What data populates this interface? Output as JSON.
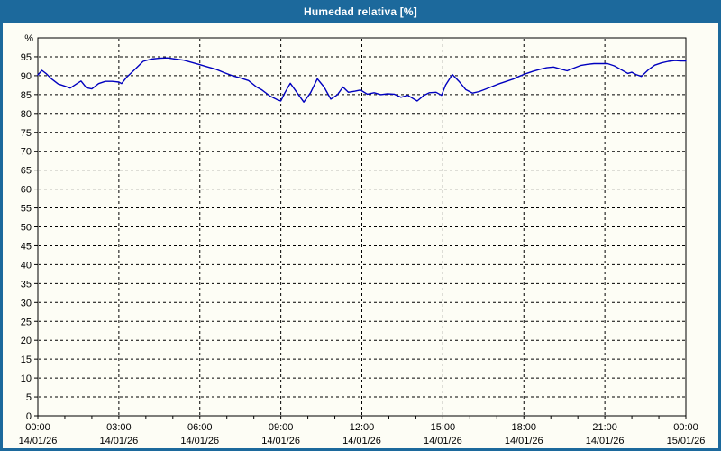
{
  "window": {
    "title": "Humedad relativa [%]"
  },
  "colors": {
    "titlebar": "#1c699c",
    "frame_border": "#1c699c",
    "panel_bg": "#fdfdf5",
    "line": "#0000bf",
    "grid": "#000000",
    "axis": "#000000",
    "label_text": "#000000",
    "title_text": "#ffffff"
  },
  "chart_data": {
    "type": "line",
    "title": "Humedad relativa [%]",
    "xlabel": "",
    "ylabel": "%",
    "ylim": [
      0,
      100
    ],
    "xlim_hours": [
      0,
      24
    ],
    "grid": "dashed",
    "legend": "none",
    "y_ticks": [
      0,
      5,
      10,
      15,
      20,
      25,
      30,
      35,
      40,
      45,
      50,
      55,
      60,
      65,
      70,
      75,
      80,
      85,
      90,
      95
    ],
    "x_ticks": [
      {
        "time": "00:00",
        "date": "14/01/26"
      },
      {
        "time": "03:00",
        "date": "14/01/26"
      },
      {
        "time": "06:00",
        "date": "14/01/26"
      },
      {
        "time": "09:00",
        "date": "14/01/26"
      },
      {
        "time": "12:00",
        "date": "14/01/26"
      },
      {
        "time": "15:00",
        "date": "14/01/26"
      },
      {
        "time": "18:00",
        "date": "14/01/26"
      },
      {
        "time": "21:00",
        "date": "14/01/26"
      },
      {
        "time": "00:00",
        "date": "15/01/26"
      }
    ],
    "minor_x_tick_hours": 1,
    "series": [
      {
        "name": "Humedad relativa",
        "unit": "%",
        "color": "#0000bf",
        "points": [
          [
            0.0,
            90.2
          ],
          [
            0.15,
            91.4
          ],
          [
            0.3,
            90.6
          ],
          [
            0.5,
            89.2
          ],
          [
            0.75,
            87.8
          ],
          [
            1.0,
            87.2
          ],
          [
            1.2,
            86.7
          ],
          [
            1.45,
            87.9
          ],
          [
            1.6,
            88.6
          ],
          [
            1.8,
            86.8
          ],
          [
            2.0,
            86.5
          ],
          [
            2.25,
            87.9
          ],
          [
            2.5,
            88.5
          ],
          [
            2.75,
            88.5
          ],
          [
            3.0,
            88.3
          ],
          [
            3.1,
            87.9
          ],
          [
            3.3,
            89.7
          ],
          [
            3.6,
            91.7
          ],
          [
            3.9,
            93.8
          ],
          [
            4.2,
            94.4
          ],
          [
            4.5,
            94.6
          ],
          [
            4.8,
            94.7
          ],
          [
            5.1,
            94.4
          ],
          [
            5.4,
            94.1
          ],
          [
            5.7,
            93.5
          ],
          [
            6.0,
            92.9
          ],
          [
            6.3,
            92.3
          ],
          [
            6.6,
            91.7
          ],
          [
            6.9,
            90.8
          ],
          [
            7.2,
            90.0
          ],
          [
            7.5,
            89.4
          ],
          [
            7.8,
            88.7
          ],
          [
            8.1,
            87.0
          ],
          [
            8.3,
            86.2
          ],
          [
            8.6,
            84.6
          ],
          [
            8.85,
            83.7
          ],
          [
            9.0,
            83.3
          ],
          [
            9.15,
            85.5
          ],
          [
            9.35,
            88.0
          ],
          [
            9.6,
            85.5
          ],
          [
            9.85,
            83.0
          ],
          [
            10.1,
            85.5
          ],
          [
            10.35,
            89.2
          ],
          [
            10.6,
            87.0
          ],
          [
            10.85,
            83.8
          ],
          [
            11.1,
            85.0
          ],
          [
            11.3,
            87.0
          ],
          [
            11.5,
            85.6
          ],
          [
            11.75,
            85.9
          ],
          [
            11.95,
            86.2
          ],
          [
            12.2,
            85.1
          ],
          [
            12.45,
            85.5
          ],
          [
            12.7,
            85.0
          ],
          [
            12.95,
            85.2
          ],
          [
            13.2,
            85.1
          ],
          [
            13.45,
            84.3
          ],
          [
            13.7,
            84.8
          ],
          [
            14.05,
            83.3
          ],
          [
            14.3,
            84.8
          ],
          [
            14.5,
            85.5
          ],
          [
            14.75,
            85.6
          ],
          [
            14.95,
            84.8
          ],
          [
            15.1,
            87.5
          ],
          [
            15.35,
            90.3
          ],
          [
            15.6,
            88.5
          ],
          [
            15.85,
            86.3
          ],
          [
            16.1,
            85.4
          ],
          [
            16.35,
            85.8
          ],
          [
            16.6,
            86.5
          ],
          [
            16.85,
            87.2
          ],
          [
            17.1,
            87.9
          ],
          [
            17.35,
            88.5
          ],
          [
            17.6,
            89.1
          ],
          [
            17.85,
            89.9
          ],
          [
            18.1,
            90.6
          ],
          [
            18.35,
            91.2
          ],
          [
            18.6,
            91.7
          ],
          [
            18.85,
            92.1
          ],
          [
            19.1,
            92.3
          ],
          [
            19.35,
            91.8
          ],
          [
            19.6,
            91.3
          ],
          [
            19.85,
            92.0
          ],
          [
            20.1,
            92.7
          ],
          [
            20.35,
            93.0
          ],
          [
            20.6,
            93.2
          ],
          [
            20.85,
            93.2
          ],
          [
            21.1,
            93.2
          ],
          [
            21.35,
            92.6
          ],
          [
            21.6,
            91.6
          ],
          [
            21.85,
            90.6
          ],
          [
            22.0,
            90.9
          ],
          [
            22.15,
            90.3
          ],
          [
            22.35,
            89.8
          ],
          [
            22.6,
            91.5
          ],
          [
            22.85,
            92.8
          ],
          [
            23.1,
            93.4
          ],
          [
            23.35,
            93.8
          ],
          [
            23.6,
            94.0
          ],
          [
            23.8,
            93.9
          ],
          [
            24.0,
            93.9
          ]
        ]
      }
    ]
  }
}
